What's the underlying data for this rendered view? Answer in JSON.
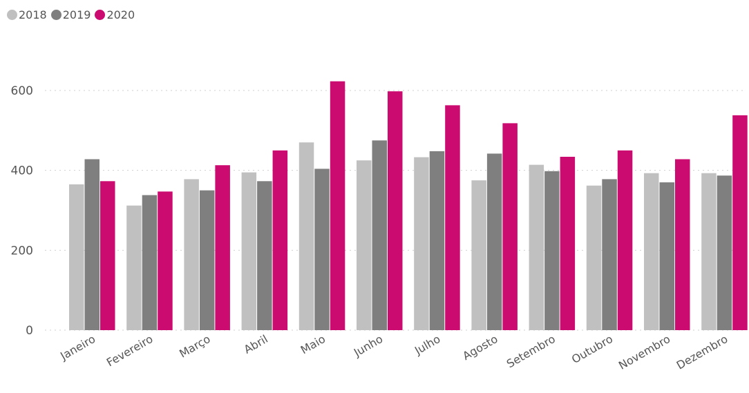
{
  "chart_data": {
    "type": "bar",
    "categories": [
      "Janeiro",
      "Fevereiro",
      "Março",
      "Abril",
      "Maio",
      "Junho",
      "Julho",
      "Agosto",
      "Setembro",
      "Outubro",
      "Novembro",
      "Dezembro"
    ],
    "series": [
      {
        "name": "2018",
        "color": "#c0c0c0",
        "values": [
          365,
          312,
          378,
          395,
          470,
          425,
          433,
          375,
          414,
          362,
          393,
          393
        ]
      },
      {
        "name": "2019",
        "color": "#7f7f7f",
        "values": [
          428,
          338,
          350,
          373,
          404,
          475,
          448,
          442,
          398,
          378,
          370,
          387
        ]
      },
      {
        "name": "2020",
        "color": "#cc0b71",
        "values": [
          373,
          347,
          413,
          450,
          623,
          598,
          563,
          518,
          434,
          450,
          428,
          538
        ]
      }
    ],
    "yticks": [
      0,
      200,
      400,
      600
    ],
    "ylim": [
      0,
      650
    ],
    "grid": true,
    "legend": "top-left"
  }
}
